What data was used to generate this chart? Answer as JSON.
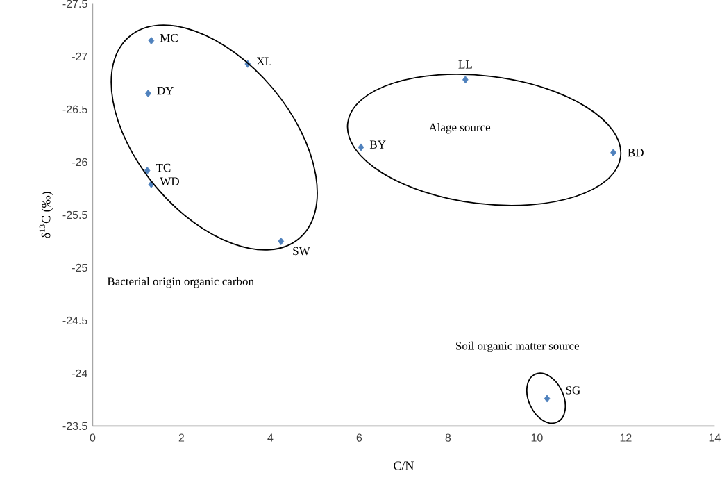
{
  "chart_data": {
    "type": "scatter",
    "xlabel": "C/N",
    "ylabel": "δ$^{13}$C (‰)",
    "x": [
      1.32,
      3.49,
      1.25,
      1.23,
      1.32,
      4.24,
      8.39,
      6.04,
      11.72,
      10.23
    ],
    "values": [
      -27.15,
      -26.93,
      -26.65,
      -25.92,
      -25.79,
      -25.25,
      -26.78,
      -26.14,
      -26.09,
      -23.76
    ],
    "color": "#4f81bd",
    "marker": "diamond",
    "xlim": [
      0,
      14
    ],
    "xticks": [
      0,
      2,
      4,
      6,
      8,
      10,
      12,
      14
    ],
    "ylim": [
      -23.5,
      -27.5
    ],
    "yticks": [
      -27.5,
      -27,
      -26.5,
      -26,
      -25.5,
      -25,
      -24.5,
      -24,
      -23.5
    ],
    "annotations": [
      {
        "text": "MC",
        "x": 1.32,
        "y": -27.15
      },
      {
        "text": "XL",
        "x": 3.49,
        "y": -26.93
      },
      {
        "text": "DY",
        "x": 1.25,
        "y": -26.65
      },
      {
        "text": "TC",
        "x": 1.23,
        "y": -25.92
      },
      {
        "text": "WD",
        "x": 1.32,
        "y": -25.79
      },
      {
        "text": "SW",
        "x": 4.24,
        "y": -25.25
      },
      {
        "text": "LL",
        "x": 8.39,
        "y": -26.78
      },
      {
        "text": "BY",
        "x": 6.04,
        "y": -26.14
      },
      {
        "text": "BD",
        "x": 11.72,
        "y": -26.09
      },
      {
        "text": "SG",
        "x": 10.23,
        "y": -23.76
      },
      "Bacterial origin organic carbon",
      "Alage source",
      "Soil organic matter source"
    ]
  }
}
